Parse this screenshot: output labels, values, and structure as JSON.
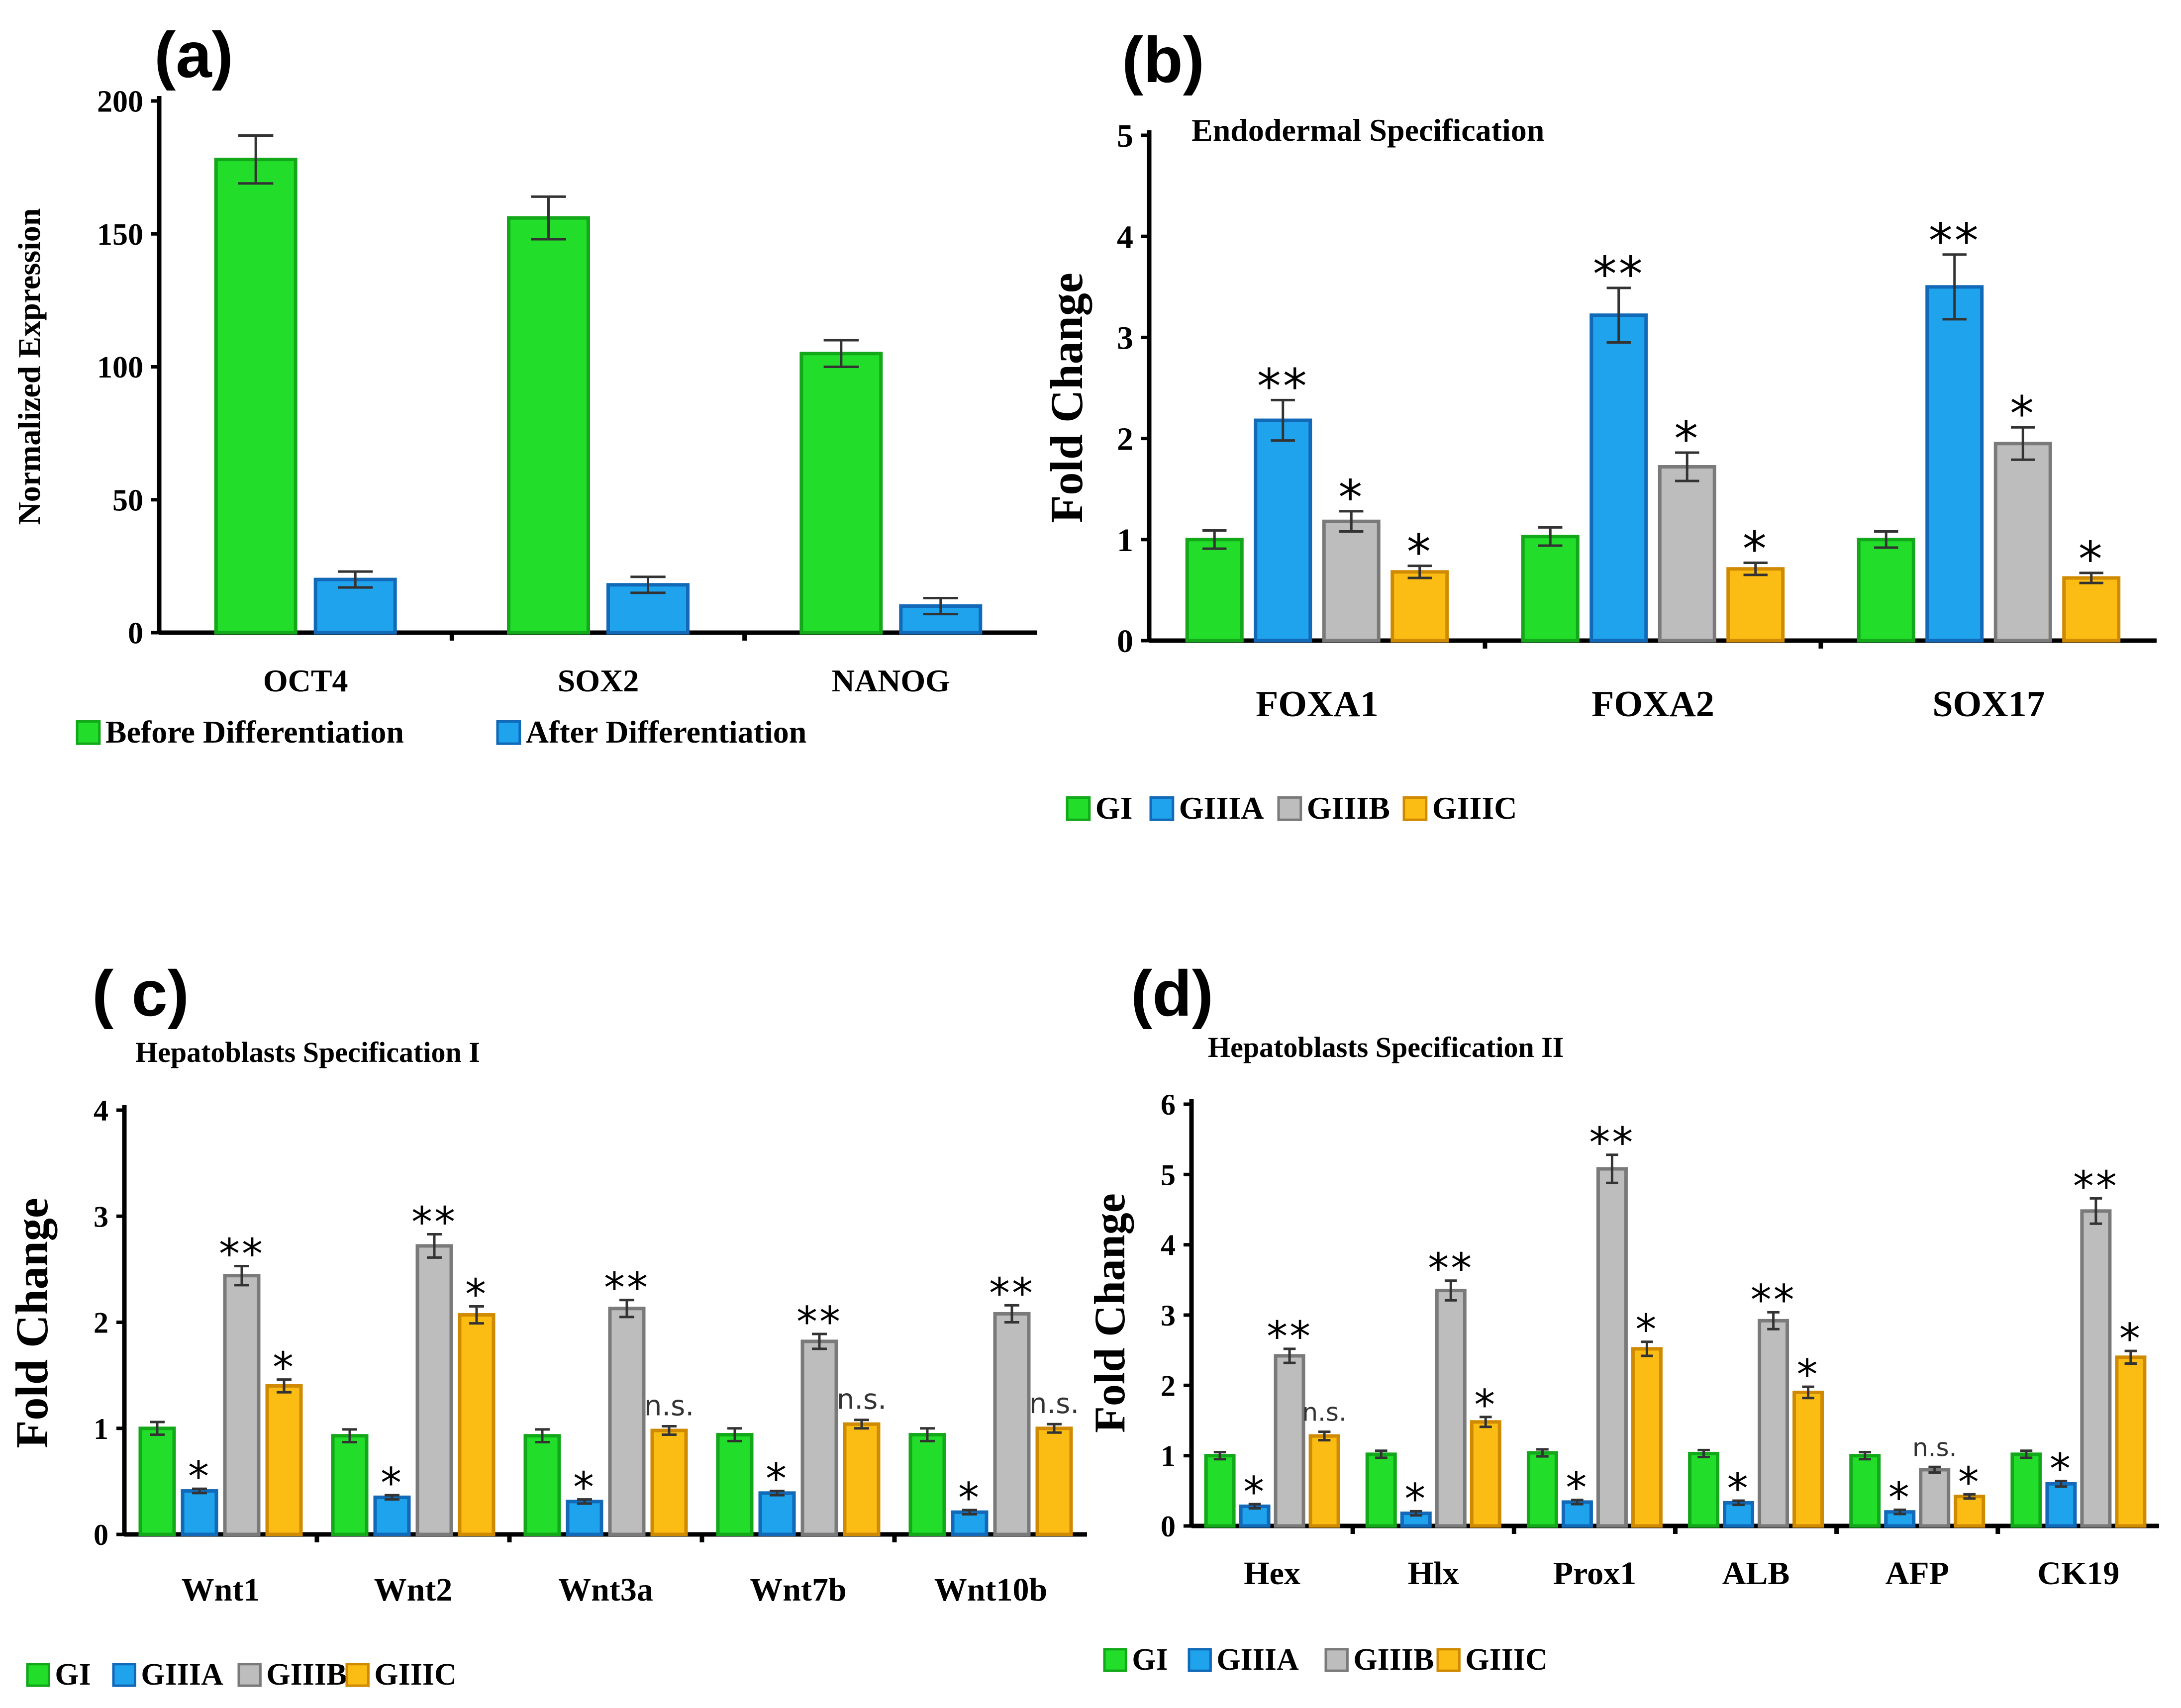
{
  "colors": {
    "green": "#22dd2a",
    "green_edge": "#12a81a",
    "blue": "#1fa3ec",
    "blue_edge": "#1169b8",
    "gray": "#bdbdbd",
    "gray_edge": "#7a7a7a",
    "orange": "#fbbd14",
    "orange_edge": "#d08a00"
  },
  "chart_data": [
    {
      "id": "a",
      "panel_label": "(a)",
      "type": "bar",
      "title": "",
      "ylabel": "Normalized Expression",
      "xlabel": "",
      "ylim": [
        0,
        200
      ],
      "yticks": [
        "0",
        "50",
        "100",
        "150",
        "200"
      ],
      "categories": [
        "OCT4",
        "SOX2",
        "NANOG"
      ],
      "series": [
        {
          "name": "Before Differentiation",
          "color_key": "green",
          "values": [
            178,
            156,
            105
          ],
          "errors": [
            9,
            8,
            5
          ],
          "sig": [
            "",
            "",
            ""
          ]
        },
        {
          "name": "After Differentiation",
          "color_key": "blue",
          "values": [
            20,
            18,
            10
          ],
          "errors": [
            3,
            3,
            3
          ],
          "sig": [
            "",
            "",
            ""
          ]
        }
      ],
      "legend": [
        "Before Differentiation",
        "After Differentiation"
      ]
    },
    {
      "id": "b",
      "panel_label": "(b)",
      "type": "bar",
      "title": "Endodermal Specification",
      "ylabel": "Fold Change",
      "xlabel": "",
      "ylim": [
        0,
        5
      ],
      "yticks": [
        "0",
        "1",
        "2",
        "3",
        "4",
        "5"
      ],
      "categories": [
        "FOXA1",
        "FOXA2",
        "SOX17"
      ],
      "series": [
        {
          "name": "GI",
          "color_key": "green",
          "values": [
            1.0,
            1.03,
            1.0
          ],
          "errors": [
            0.09,
            0.09,
            0.08
          ],
          "sig": [
            "",
            "",
            ""
          ]
        },
        {
          "name": "GIIIA",
          "color_key": "blue",
          "values": [
            2.18,
            3.22,
            3.5
          ],
          "errors": [
            0.2,
            0.27,
            0.32
          ],
          "sig": [
            "**",
            "**",
            "**"
          ]
        },
        {
          "name": "GIIIB",
          "color_key": "gray",
          "values": [
            1.18,
            1.72,
            1.95
          ],
          "errors": [
            0.1,
            0.14,
            0.16
          ],
          "sig": [
            "*",
            "*",
            "*"
          ]
        },
        {
          "name": "GIIIC",
          "color_key": "orange",
          "values": [
            0.68,
            0.71,
            0.62
          ],
          "errors": [
            0.06,
            0.06,
            0.05
          ],
          "sig": [
            "*",
            "*",
            "*"
          ]
        }
      ],
      "legend": [
        "GI",
        "GIIIA",
        "GIIIB",
        "GIIIC"
      ]
    },
    {
      "id": "c",
      "panel_label": "( c)",
      "type": "bar",
      "title": "Hepatoblasts Specification I",
      "ylabel": "Fold Change",
      "xlabel": "",
      "ylim": [
        0,
        4
      ],
      "yticks": [
        "0",
        "1",
        "2",
        "3",
        "4"
      ],
      "categories": [
        "Wnt1",
        "Wnt2",
        "Wnt3a",
        "Wnt7b",
        "Wnt10b"
      ],
      "series": [
        {
          "name": "GI",
          "color_key": "green",
          "values": [
            1.0,
            0.93,
            0.93,
            0.94,
            0.94
          ],
          "errors": [
            0.06,
            0.06,
            0.06,
            0.06,
            0.06
          ],
          "sig": [
            "",
            "",
            "",
            "",
            ""
          ]
        },
        {
          "name": "GIIIA",
          "color_key": "blue",
          "values": [
            0.41,
            0.35,
            0.31,
            0.39,
            0.21
          ],
          "errors": [
            0.02,
            0.02,
            0.02,
            0.02,
            0.02
          ],
          "sig": [
            "*",
            "*",
            "*",
            "*",
            "*"
          ]
        },
        {
          "name": "GIIIB",
          "color_key": "gray",
          "values": [
            2.44,
            2.72,
            2.13,
            1.82,
            2.08
          ],
          "errors": [
            0.09,
            0.11,
            0.08,
            0.07,
            0.08
          ],
          "sig": [
            "**",
            "**",
            "**",
            "**",
            "**"
          ]
        },
        {
          "name": "GIIIC",
          "color_key": "orange",
          "values": [
            1.4,
            2.07,
            0.98,
            1.04,
            1.0
          ],
          "errors": [
            0.06,
            0.08,
            0.04,
            0.04,
            0.04
          ],
          "sig": [
            "*",
            "*",
            "n.s.",
            "n.s.",
            "n.s."
          ]
        }
      ],
      "legend": [
        "GI",
        "GIIIA",
        "GIIIB",
        "GIIIC"
      ]
    },
    {
      "id": "d",
      "panel_label": "(d)",
      "type": "bar",
      "title": "Hepatoblasts Specification II",
      "ylabel": "Fold Change",
      "xlabel": "",
      "ylim": [
        0,
        6
      ],
      "yticks": [
        "0",
        "1",
        "2",
        "3",
        "4",
        "5",
        "6"
      ],
      "categories": [
        "Hex",
        "Hlx",
        "Prox1",
        "ALB",
        "AFP",
        "CK19"
      ],
      "series": [
        {
          "name": "GI",
          "color_key": "green",
          "values": [
            1.0,
            1.02,
            1.04,
            1.03,
            1.0,
            1.02
          ],
          "errors": [
            0.05,
            0.05,
            0.05,
            0.05,
            0.05,
            0.05
          ],
          "sig": [
            "",
            "",
            "",
            "",
            "",
            ""
          ]
        },
        {
          "name": "GIIIA",
          "color_key": "blue",
          "values": [
            0.28,
            0.18,
            0.34,
            0.33,
            0.2,
            0.6
          ],
          "errors": [
            0.03,
            0.03,
            0.03,
            0.03,
            0.03,
            0.04
          ],
          "sig": [
            "*",
            "*",
            "*",
            "*",
            "*",
            "*"
          ]
        },
        {
          "name": "GIIIB",
          "color_key": "gray",
          "values": [
            2.42,
            3.35,
            5.08,
            2.92,
            0.8,
            4.48
          ],
          "errors": [
            0.1,
            0.14,
            0.2,
            0.12,
            0.04,
            0.18
          ],
          "sig": [
            "**",
            "**",
            "**",
            "**",
            "n.s.",
            "**"
          ]
        },
        {
          "name": "GIIIC",
          "color_key": "orange",
          "values": [
            1.28,
            1.48,
            2.52,
            1.9,
            0.42,
            2.4
          ],
          "errors": [
            0.06,
            0.07,
            0.1,
            0.08,
            0.03,
            0.09
          ],
          "sig": [
            "n.s.",
            "*",
            "*",
            "*",
            "*",
            "*"
          ]
        }
      ],
      "legend": [
        "GI",
        "GIIIA",
        "GIIIB",
        "GIIIC"
      ]
    }
  ]
}
